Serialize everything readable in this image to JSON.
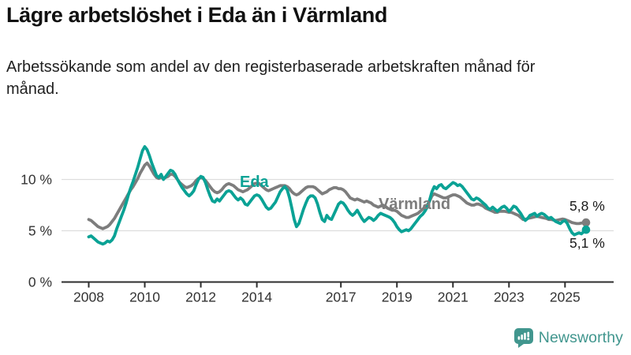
{
  "header": {
    "title": "Lägre arbetslöshet i Eda än i Värmland",
    "subtitle": "Arbetssökande som andel av den registerbaserade arbetskraften månad för månad."
  },
  "chart_data": {
    "type": "line",
    "title": "Lägre arbetslöshet i Eda än i Värmland",
    "unit": "%",
    "x_start": "2008-01",
    "x_end": "2025-10",
    "x_step_months": 1,
    "x_tick_years": [
      2008,
      2010,
      2012,
      2014,
      2017,
      2019,
      2021,
      2023,
      2025
    ],
    "x_tick_labels": [
      "2008",
      "2010",
      "2012",
      "2014",
      "2017",
      "2019",
      "2021",
      "2023",
      "2025"
    ],
    "y_ticks": [
      0,
      5,
      10
    ],
    "y_tick_labels": [
      "0 %",
      "5 %",
      "10 %"
    ],
    "ylim": [
      0,
      13.5
    ],
    "grid": true,
    "legend_position": "inline-labels",
    "series": [
      {
        "name": "Värmland",
        "color": "#7d7d7d",
        "end_label": "5,8 %",
        "last_value": 5.8,
        "values": [
          6.1,
          6.0,
          5.8,
          5.6,
          5.4,
          5.3,
          5.2,
          5.3,
          5.4,
          5.6,
          5.9,
          6.2,
          6.6,
          7.0,
          7.4,
          7.8,
          8.2,
          8.6,
          9.0,
          9.3,
          9.7,
          10.1,
          10.6,
          11.0,
          11.4,
          11.6,
          11.3,
          10.9,
          10.5,
          10.2,
          10.1,
          10.2,
          10.1,
          10.2,
          10.3,
          10.5,
          10.5,
          10.3,
          10.0,
          9.7,
          9.5,
          9.3,
          9.2,
          9.3,
          9.4,
          9.6,
          9.9,
          10.1,
          10.2,
          10.1,
          9.9,
          9.6,
          9.3,
          9.0,
          8.8,
          8.7,
          8.8,
          9.0,
          9.3,
          9.5,
          9.6,
          9.5,
          9.4,
          9.2,
          9.0,
          8.9,
          8.8,
          8.9,
          9.0,
          9.2,
          9.4,
          9.6,
          9.65,
          9.6,
          9.4,
          9.2,
          9.0,
          8.9,
          9.0,
          9.1,
          9.2,
          9.3,
          9.4,
          9.4,
          9.4,
          9.3,
          9.1,
          8.8,
          8.6,
          8.5,
          8.6,
          8.8,
          9.0,
          9.2,
          9.3,
          9.3,
          9.3,
          9.2,
          9.0,
          8.8,
          8.6,
          8.7,
          8.8,
          9.0,
          9.1,
          9.2,
          9.2,
          9.1,
          9.1,
          9.0,
          8.8,
          8.5,
          8.2,
          8.1,
          8.0,
          8.1,
          8.0,
          7.9,
          7.8,
          7.9,
          7.8,
          7.7,
          7.5,
          7.4,
          7.3,
          7.4,
          7.5,
          7.4,
          7.2,
          7.1,
          7.0,
          7.0,
          6.9,
          6.7,
          6.5,
          6.4,
          6.3,
          6.3,
          6.4,
          6.5,
          6.6,
          6.7,
          6.9,
          7.1,
          7.3,
          7.5,
          7.9,
          8.4,
          8.6,
          8.5,
          8.4,
          8.3,
          8.2,
          8.2,
          8.3,
          8.4,
          8.5,
          8.5,
          8.4,
          8.3,
          8.1,
          7.9,
          7.7,
          7.6,
          7.5,
          7.5,
          7.6,
          7.6,
          7.5,
          7.4,
          7.2,
          7.1,
          7.0,
          6.9,
          6.8,
          6.8,
          6.9,
          6.9,
          6.9,
          6.85,
          6.8,
          6.8,
          6.7,
          6.6,
          6.5,
          6.3,
          6.1,
          6.1,
          6.2,
          6.25,
          6.3,
          6.35,
          6.4,
          6.35,
          6.3,
          6.25,
          6.2,
          6.1,
          6.1,
          6.05,
          6.0,
          6.05,
          6.1,
          6.15,
          6.1,
          6.0,
          5.9,
          5.8,
          5.75,
          5.7,
          5.7,
          5.75,
          5.8,
          5.8
        ]
      },
      {
        "name": "Eda",
        "color": "#0aa295",
        "end_label": "5,1 %",
        "last_value": 5.1,
        "values": [
          4.4,
          4.5,
          4.3,
          4.1,
          3.9,
          3.8,
          3.7,
          3.8,
          4.0,
          3.9,
          4.1,
          4.5,
          5.2,
          5.8,
          6.4,
          7.0,
          7.7,
          8.5,
          9.2,
          9.8,
          10.5,
          11.2,
          12.0,
          12.8,
          13.2,
          12.9,
          12.3,
          11.6,
          11.0,
          10.4,
          10.2,
          10.5,
          10.0,
          10.3,
          10.6,
          10.9,
          10.8,
          10.5,
          10.0,
          9.6,
          9.2,
          8.9,
          8.6,
          8.4,
          8.6,
          8.9,
          9.5,
          10.0,
          10.3,
          10.2,
          9.7,
          9.0,
          8.4,
          7.9,
          7.8,
          8.1,
          7.9,
          8.2,
          8.5,
          8.8,
          8.9,
          8.8,
          8.5,
          8.2,
          8.0,
          8.2,
          8.0,
          7.6,
          7.5,
          7.8,
          8.1,
          8.4,
          8.5,
          8.4,
          8.1,
          7.7,
          7.3,
          7.1,
          7.2,
          7.5,
          7.8,
          8.3,
          8.8,
          9.1,
          9.3,
          9.0,
          8.2,
          7.2,
          6.1,
          5.4,
          5.7,
          6.4,
          7.1,
          7.7,
          8.2,
          8.4,
          8.4,
          8.2,
          7.6,
          6.8,
          6.1,
          5.9,
          6.5,
          6.2,
          6.1,
          6.6,
          7.1,
          7.6,
          7.8,
          7.7,
          7.4,
          7.0,
          6.7,
          6.5,
          6.7,
          7.0,
          6.6,
          6.2,
          5.9,
          6.1,
          6.3,
          6.2,
          6.0,
          6.2,
          6.5,
          6.7,
          6.6,
          6.5,
          6.4,
          6.3,
          6.1,
          5.8,
          5.4,
          5.1,
          4.9,
          5.0,
          5.1,
          5.0,
          5.2,
          5.5,
          5.8,
          6.1,
          6.4,
          6.6,
          6.9,
          7.3,
          8.0,
          8.8,
          9.3,
          9.1,
          9.4,
          9.5,
          9.2,
          9.1,
          9.3,
          9.5,
          9.7,
          9.6,
          9.4,
          9.5,
          9.3,
          9.0,
          8.7,
          8.4,
          8.1,
          8.0,
          8.2,
          8.1,
          7.9,
          7.7,
          7.5,
          7.2,
          7.1,
          7.3,
          7.1,
          6.9,
          7.1,
          7.3,
          7.4,
          7.2,
          6.9,
          7.1,
          7.4,
          7.3,
          7.0,
          6.7,
          6.3,
          6.0,
          6.2,
          6.5,
          6.6,
          6.7,
          6.4,
          6.6,
          6.7,
          6.6,
          6.4,
          6.2,
          6.3,
          6.1,
          5.9,
          5.8,
          5.7,
          5.9,
          6.0,
          5.7,
          5.2,
          4.8,
          4.6,
          4.7,
          4.8,
          4.7,
          4.9,
          5.1
        ]
      }
    ]
  },
  "footer": {
    "brand": "Newsworthy"
  },
  "colors": {
    "eda": "#0aa295",
    "varmland": "#7d7d7d",
    "grid": "#dddddd",
    "axis": "#2e2e2e",
    "tick_text": "#333333",
    "brand": "#41968e"
  }
}
